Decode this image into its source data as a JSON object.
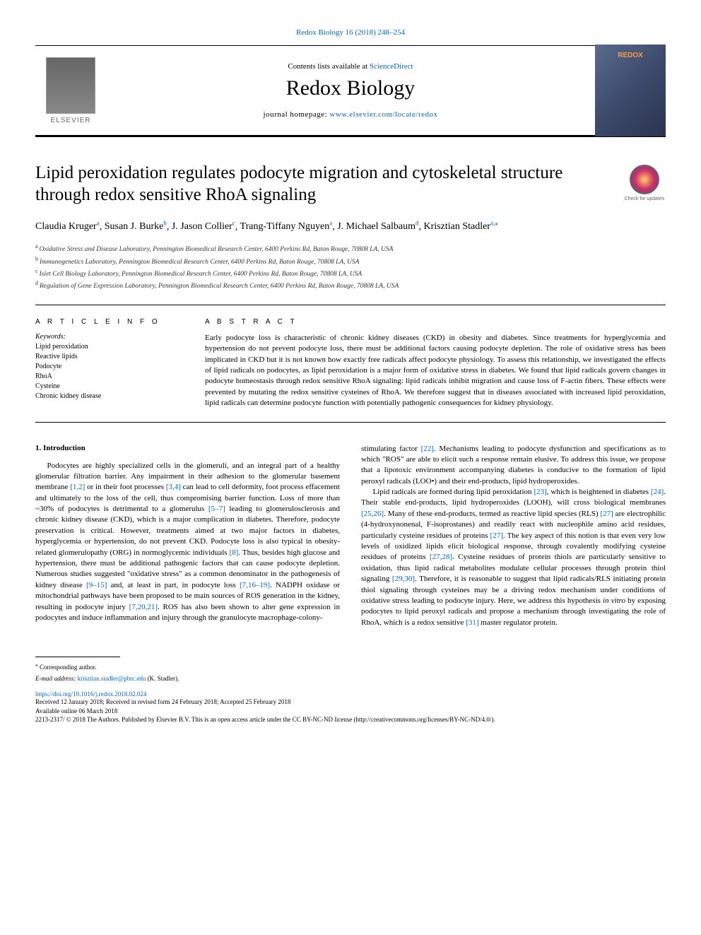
{
  "header": {
    "citation": "Redox Biology 16 (2018) 248–254",
    "contents_prefix": "Contents lists available at ",
    "contents_link": "ScienceDirect",
    "journal_name": "Redox Biology",
    "homepage_prefix": "journal homepage: ",
    "homepage_link": "www.elsevier.com/locate/redox",
    "elsevier_label": "ELSEVIER",
    "cover_label": "REDOX"
  },
  "article": {
    "title": "Lipid peroxidation regulates podocyte migration and cytoskeletal structure through redox sensitive RhoA signaling",
    "check_updates": "Check for updates",
    "authors_html": "Claudia Kruger",
    "authors": [
      {
        "name": "Claudia Kruger",
        "aff": "a"
      },
      {
        "name": "Susan J. Burke",
        "aff": "b"
      },
      {
        "name": "J. Jason Collier",
        "aff": "c"
      },
      {
        "name": "Trang-Tiffany Nguyen",
        "aff": "a"
      },
      {
        "name": "J. Michael Salbaum",
        "aff": "d"
      },
      {
        "name": "Krisztian Stadler",
        "aff": "a,",
        "corr": true
      }
    ],
    "affiliations": [
      {
        "sup": "a",
        "text": "Oxidative Stress and Disease Laboratory, Pennington Biomedical Research Center, 6400 Perkins Rd, Baton Rouge, 70808 LA, USA"
      },
      {
        "sup": "b",
        "text": "Immunogenetics Laboratory, Pennington Biomedical Research Center, 6400 Perkins Rd, Baton Rouge, 70808 LA, USA"
      },
      {
        "sup": "c",
        "text": "Islet Cell Biology Laboratory, Pennington Biomedical Research Center, 6400 Perkins Rd, Baton Rouge, 70808 LA, USA"
      },
      {
        "sup": "d",
        "text": "Regulation of Gene Expression Laboratory, Pennington Biomedical Research Center, 6400 Perkins Rd, Baton Rouge, 70808 LA, USA"
      }
    ]
  },
  "info": {
    "heading": "A R T I C L E  I N F O",
    "keywords_label": "Keywords:",
    "keywords": [
      "Lipid peroxidation",
      "Reactive lipids",
      "Podocyte",
      "RhoA",
      "Cysteine",
      "Chronic kidney disease"
    ]
  },
  "abstract": {
    "heading": "A B S T R A C T",
    "text": "Early podocyte loss is characteristic of chronic kidney diseases (CKD) in obesity and diabetes. Since treatments for hyperglycemia and hypertension do not prevent podocyte loss, there must be additional factors causing podocyte depletion. The role of oxidative stress has been implicated in CKD but it is not known how exactly free radicals affect podocyte physiology. To assess this relationship, we investigated the effects of lipid radicals on podocytes, as lipid peroxidation is a major form of oxidative stress in diabetes. We found that lipid radicals govern changes in podocyte homeostasis through redox sensitive RhoA signaling: lipid radicals inhibit migration and cause loss of F-actin fibers. These effects were prevented by mutating the redox sensitive cysteines of RhoA. We therefore suggest that in diseases associated with increased lipid peroxidation, lipid radicals can determine podocyte function with potentially pathogenic consequences for kidney physiology."
  },
  "sections": {
    "intro_heading": "1. Introduction",
    "col1_p1": "Podocytes are highly specialized cells in the glomeruli, and an integral part of a healthy glomerular filtration barrier. Any impairment in their adhesion to the glomerular basement membrane [1,2] or in their foot processes [3,4] can lead to cell deformity, foot process effacement and ultimately to the loss of the cell, thus compromising barrier function. Loss of more than ~30% of podocytes is detrimental to a glomerulus [5–7] leading to glomerulosclerosis and chronic kidney disease (CKD), which is a major complication in diabetes. Therefore, podocyte preservation is critical. However, treatments aimed at two major factors in diabetes, hyperglycemia or hypertension, do not prevent CKD. Podocyte loss is also typical in obesity-related glomerulopathy (ORG) in normoglycemic individuals [8]. Thus, besides high glucose and hypertension, there must be additional pathogenic factors that can cause podocyte depletion. Numerous studies suggested \"oxidative stress\" as a common denominator in the pathogenesis of kidney disease [9–15] and, at least in part, in podocyte loss [7,16–19]. NADPH oxidase or mitochondrial pathways have been proposed to be main sources of ROS generation in the kidney, resulting in podocyte injury [7,20,21]. ROS has also been shown to alter gene expression in podocytes and induce inflammation and injury through the granulocyte macrophage-colony-",
    "col2_p1": "stimulating factor [22]. Mechanisms leading to podocyte dysfunction and specifications as to which \"ROS\" are able to elicit such a response remain elusive. To address this issue, we propose that a lipotoxic environment accompanying diabetes is conducive to the formation of lipid peroxyl radicals (LOO•) and their end-products, lipid hydroperoxides.",
    "col2_p2": "Lipid radicals are formed during lipid peroxidation [23], which is heightened in diabetes [24]. Their stable end-products, lipid hydroperoxides (LOOH), will cross biological membranes [25,26]. Many of these end-products, termed as reactive lipid species (RLS) [27] are electrophilic (4-hydroxynonenal, F-isoprostanes) and readily react with nucleophile amino acid residues, particularly cysteine residues of proteins [27]. The key aspect of this notion is that even very low levels of oxidized lipids elicit biological response, through covalently modifying cysteine residues of proteins [27,28]. Cysteine residues of protein thiols are particularly sensitive to oxidation, thus lipid radical metabolites modulate cellular processes through protein thiol signaling [29,30]. Therefore, it is reasonable to suggest that lipid radicals/RLS initiating protein thiol signaling through cysteines may be a driving redox mechanism under conditions of oxidative stress leading to podocyte injury. Here, we address this hypothesis in vitro by exposing podocytes to lipid peroxyl radicals and propose a mechanism through investigating the role of RhoA, which is a redox sensitive [31] master regulator protein."
  },
  "footer": {
    "corr_symbol": "⁎",
    "corr_text": "Corresponding author.",
    "email_label": "E-mail address: ",
    "email": "krisztian.stadler@pbrc.edu",
    "email_suffix": " (K. Stadler).",
    "doi": "https://doi.org/10.1016/j.redox.2018.02.024",
    "received": "Received 12 January 2018; Received in revised form 24 February 2018; Accepted 25 February 2018",
    "available": "Available online 06 March 2018",
    "copyright": "2213-2317/ © 2018 The Authors. Published by Elsevier B.V. This is an open access article under the CC BY-NC-ND license (http://creativecommons.org/licenses/BY-NC-ND/4.0/)."
  },
  "refs": {
    "r12": "[1,2]",
    "r34": "[3,4]",
    "r57": "[5–7]",
    "r8": "[8]",
    "r915": "[9–15]",
    "r71619": "[7,16–19]",
    "r72021": "[7,20,21]",
    "r22": "[22]",
    "r23": "[23]",
    "r24": "[24]",
    "r2526": "[25,26]",
    "r27": "[27]",
    "r2728": "[27,28]",
    "r2930": "[29,30]",
    "r31": "[31]"
  },
  "colors": {
    "link": "#0066cc",
    "text": "#000000",
    "background": "#ffffff",
    "border": "#000000"
  }
}
